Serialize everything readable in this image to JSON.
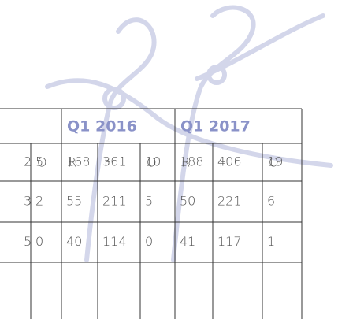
{
  "table": {
    "groups": [
      "Q1 2016",
      "Q1 2017"
    ],
    "columns": [
      "O",
      "R",
      "F",
      "O",
      "R",
      "F",
      "O"
    ],
    "rows": [
      [
        "2",
        "5",
        "168",
        "361",
        "10",
        "188",
        "406",
        "19"
      ],
      [
        "3",
        "2",
        "55",
        "211",
        "5",
        "50",
        "221",
        "6"
      ],
      [
        "5",
        "0",
        "40",
        "114",
        "0",
        "41",
        "117",
        "1"
      ]
    ]
  }
}
